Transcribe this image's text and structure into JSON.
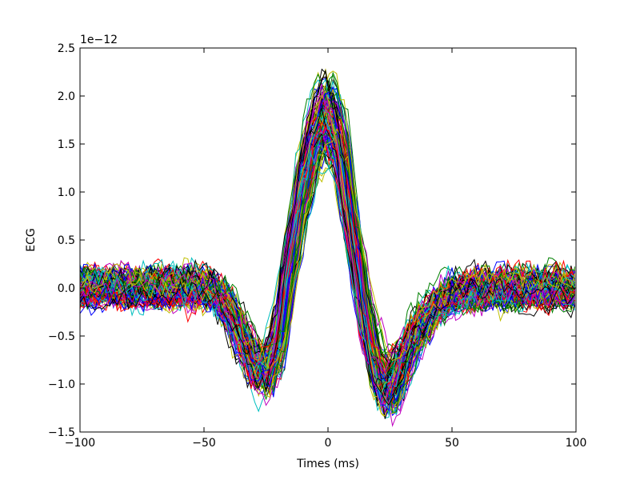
{
  "chart_data": {
    "type": "line",
    "title": "",
    "xlabel": "Times (ms)",
    "ylabel": "ECG",
    "y_offset_label": "1e−12",
    "xlim": [
      -100,
      100
    ],
    "ylim": [
      -1.5,
      2.5
    ],
    "x_ticks": [
      -100,
      -50,
      0,
      50,
      100
    ],
    "x_tick_labels": [
      "−100",
      "−50",
      "0",
      "50",
      "100"
    ],
    "y_ticks": [
      -1.5,
      -1.0,
      -0.5,
      0.0,
      0.5,
      1.0,
      1.5,
      2.0,
      2.5
    ],
    "y_tick_labels": [
      "−1.5",
      "−1.0",
      "−0.5",
      "0.0",
      "0.5",
      "1.0",
      "1.5",
      "2.0",
      "2.5"
    ],
    "grid": false,
    "legend": "none",
    "colors": [
      "#0000ff",
      "#008000",
      "#ff0000",
      "#00bfbf",
      "#bf00bf",
      "#bfbf00",
      "#000000"
    ],
    "x": [
      -100,
      -95,
      -90,
      -85,
      -80,
      -75,
      -70,
      -65,
      -60,
      -55,
      -50,
      -45,
      -40,
      -35,
      -30,
      -25,
      -20,
      -15,
      -10,
      -5,
      0,
      5,
      10,
      15,
      20,
      25,
      30,
      35,
      40,
      45,
      50,
      55,
      60,
      65,
      70,
      75,
      80,
      85,
      90,
      95,
      100
    ],
    "mean_values": [
      0.0,
      0.0,
      0.0,
      0.0,
      0.0,
      0.0,
      0.0,
      0.0,
      0.0,
      0.0,
      0.0,
      -0.05,
      -0.2,
      -0.5,
      -0.8,
      -0.9,
      -0.6,
      0.3,
      1.1,
      1.6,
      1.85,
      1.5,
      0.6,
      -0.3,
      -0.9,
      -1.1,
      -0.8,
      -0.5,
      -0.3,
      -0.15,
      -0.05,
      -0.05,
      0.0,
      0.0,
      0.0,
      0.0,
      0.0,
      0.0,
      0.0,
      0.0,
      0.0
    ],
    "trace_count": 140,
    "noise_amplitude": 0.22
  }
}
